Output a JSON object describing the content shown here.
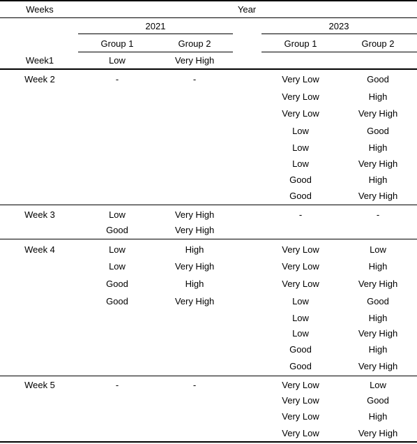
{
  "header": {
    "weeks_label": "Weeks",
    "year_label": "Year",
    "years": [
      "2021",
      "2023"
    ],
    "groups": [
      "Group 1",
      "Group 2",
      "Group 1",
      "Group 2"
    ]
  },
  "weeks": [
    {
      "label": "Week1",
      "y2021": [
        [
          "Low",
          "Very High"
        ]
      ],
      "y2023": []
    },
    {
      "label": "Week 2",
      "y2021": [
        [
          "-",
          "-"
        ]
      ],
      "y2023": [
        [
          "Very Low",
          "Good"
        ],
        [
          "Very Low",
          "High"
        ],
        [
          "Very Low",
          "Very High"
        ],
        [
          "Low",
          "Good"
        ],
        [
          "Low",
          "High"
        ],
        [
          "Low",
          "Very High"
        ],
        [
          "Good",
          "High"
        ],
        [
          "Good",
          "Very High"
        ]
      ]
    },
    {
      "label": "Week 3",
      "y2021": [
        [
          "Low",
          "Very High"
        ],
        [
          "Good",
          "Very High"
        ]
      ],
      "y2023": [
        [
          "-",
          "-"
        ]
      ]
    },
    {
      "label": "Week 4",
      "y2021": [
        [
          "Low",
          "High"
        ],
        [
          "Low",
          "Very High"
        ],
        [
          "Good",
          "High"
        ],
        [
          "Good",
          "Very High"
        ]
      ],
      "y2023": [
        [
          "Very Low",
          "Low"
        ],
        [
          "Very Low",
          "High"
        ],
        [
          "Very Low",
          "Very High"
        ],
        [
          "Low",
          "Good"
        ],
        [
          "Low",
          "High"
        ],
        [
          "Low",
          "Very High"
        ],
        [
          "Good",
          "High"
        ],
        [
          "Good",
          "Very High"
        ]
      ]
    },
    {
      "label": "Week 5",
      "y2021": [
        [
          "-",
          "-"
        ]
      ],
      "y2023": [
        [
          "Very Low",
          "Low"
        ],
        [
          "Very Low",
          "Good"
        ],
        [
          "Very Low",
          "High"
        ],
        [
          "Very Low",
          "Very High"
        ]
      ]
    }
  ]
}
